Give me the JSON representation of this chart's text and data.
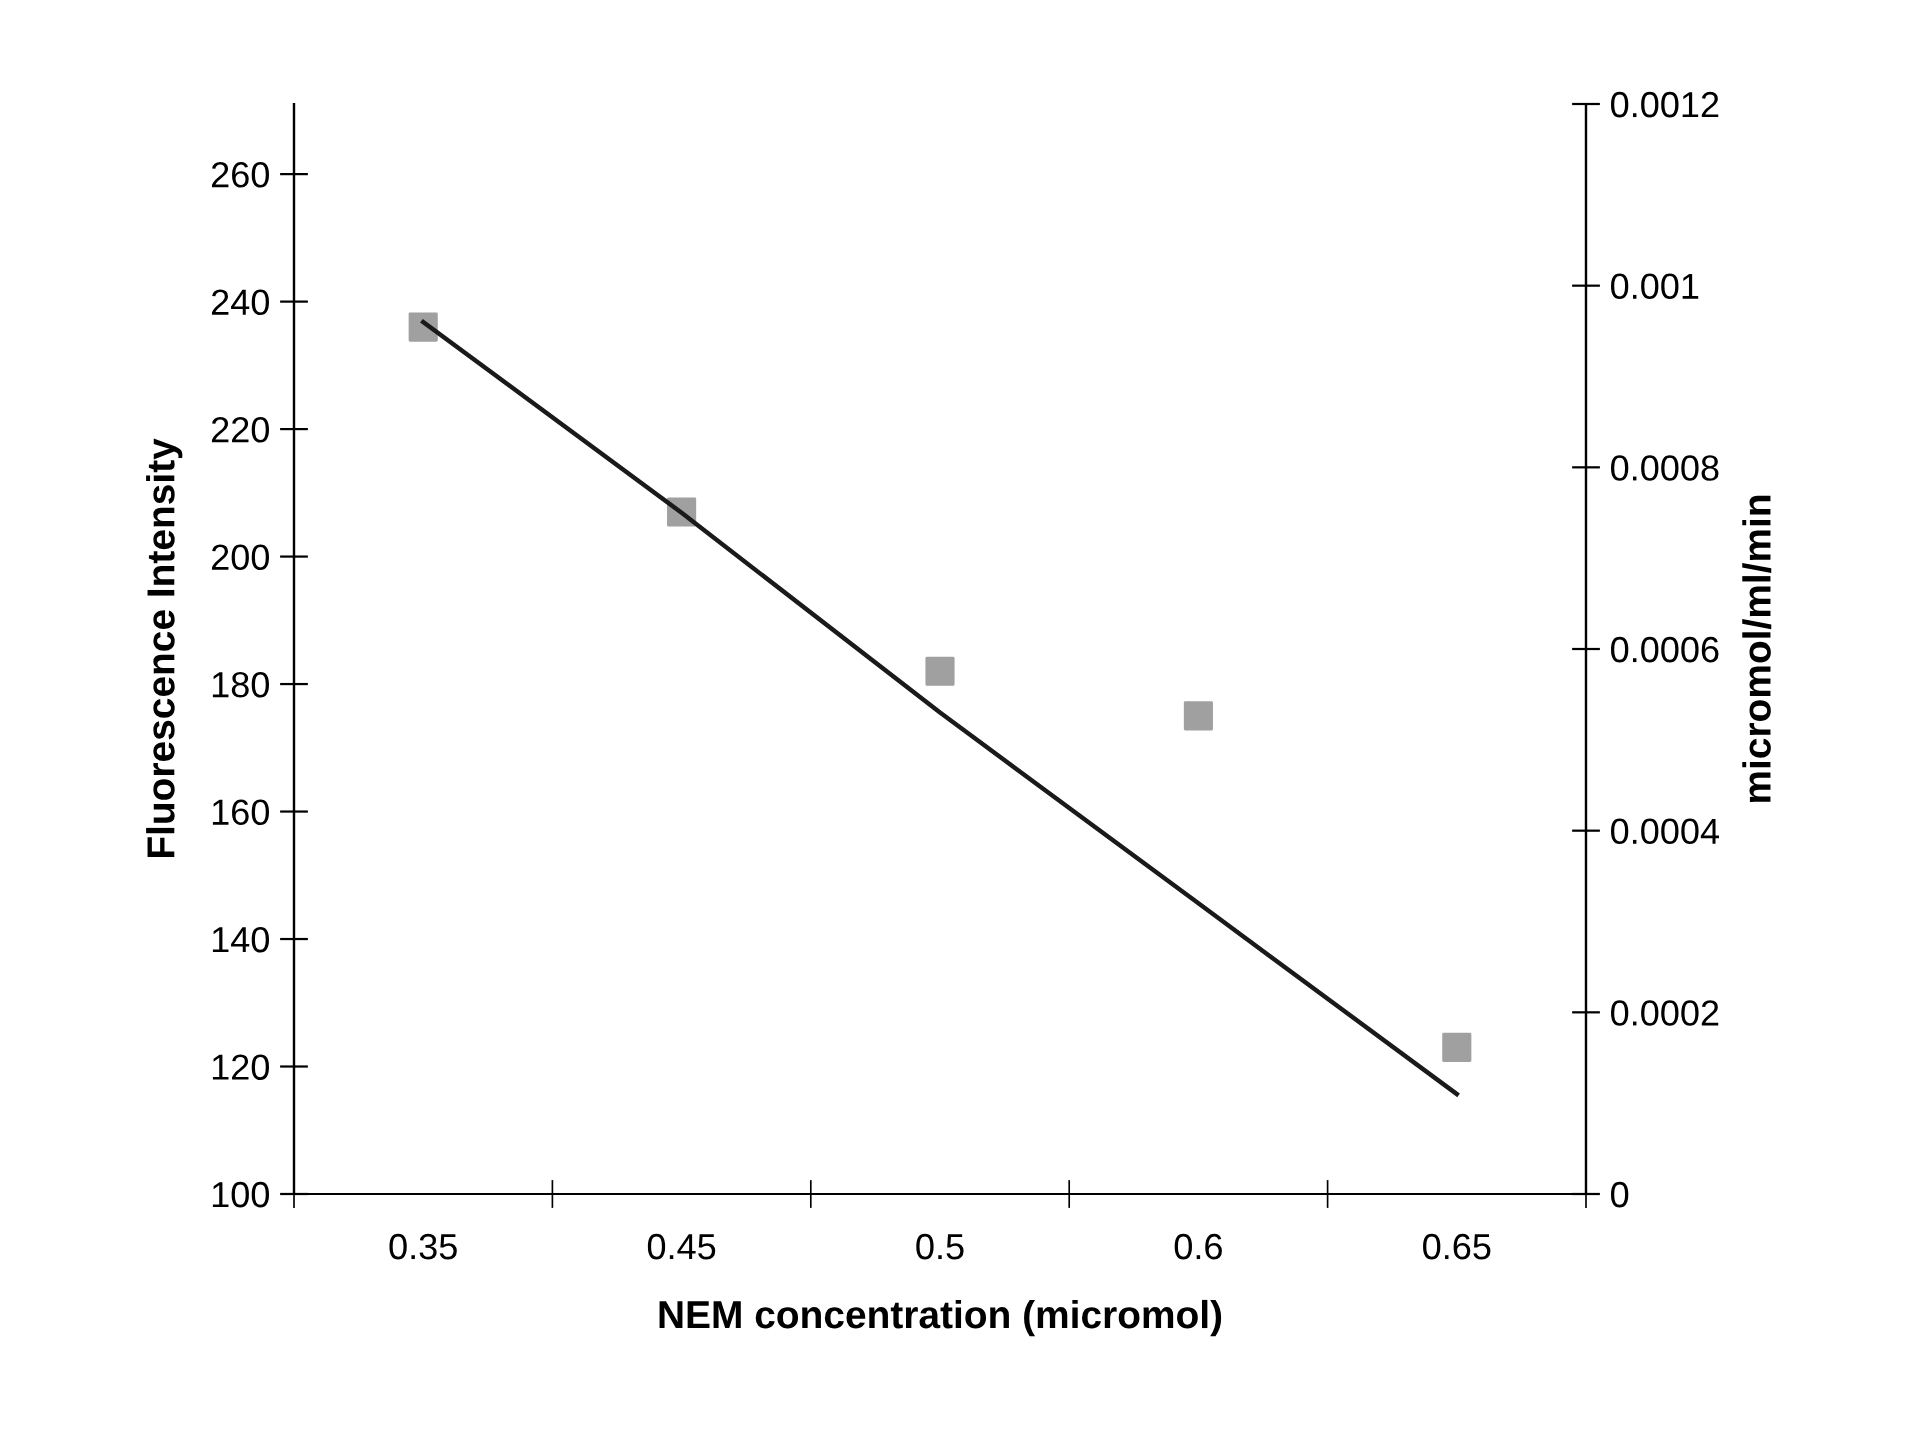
{
  "chart_data": {
    "type": "scatter",
    "xlabel": "NEM concentration (micromol)",
    "ylabel": "Fluorescence Intensity",
    "y2label": "micromol/ml/min",
    "categories": [
      "0.35",
      "0.45",
      "0.5",
      "0.6",
      "0.65"
    ],
    "series": [
      {
        "color": "#a0a0a0",
        "marker": "square",
        "values": [
          236,
          207,
          182,
          175,
          123
        ]
      },
      {
        "type": "line",
        "axis": "y2",
        "color": "#1a1a1a",
        "marker": "none",
        "line_style": "solid",
        "values": [
          0.00096,
          0.00075,
          0.00053,
          0.00032,
          0.00011
        ]
      }
    ],
    "ylim": [
      100,
      271
    ],
    "yticks": [
      100,
      120,
      140,
      160,
      180,
      200,
      220,
      240,
      260
    ],
    "y2lim": [
      0,
      0.0012
    ],
    "y2ticks": [
      0,
      0.0002,
      0.0004,
      0.0006,
      0.0008,
      0.001,
      0.0012
    ],
    "grid": false,
    "legend": false
  }
}
